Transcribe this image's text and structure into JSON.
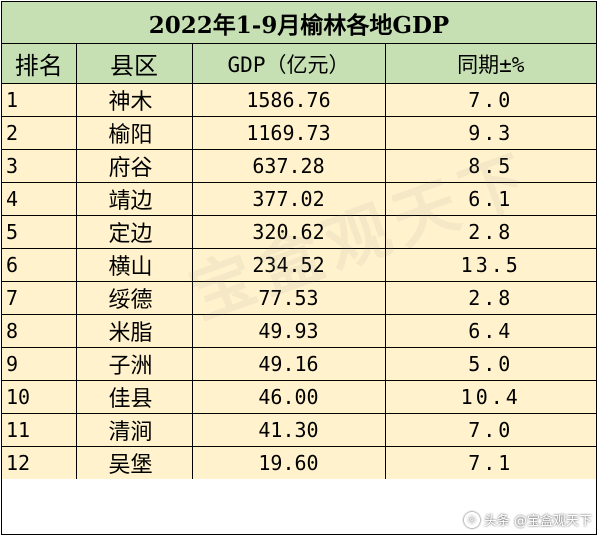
{
  "title": "2022年1-9月榆林各地GDP",
  "headers": {
    "rank": "排名",
    "county": "县区",
    "gdp": "GDP（亿元）",
    "yoy": "同期±%"
  },
  "rows": [
    {
      "rank": "1",
      "county": "神木",
      "gdp": "1586.76",
      "yoy": "7.0"
    },
    {
      "rank": "2",
      "county": "榆阳",
      "gdp": "1169.73",
      "yoy": "9.3"
    },
    {
      "rank": "3",
      "county": "府谷",
      "gdp": "637.28",
      "yoy": "8.5"
    },
    {
      "rank": "4",
      "county": "靖边",
      "gdp": "377.02",
      "yoy": "6.1"
    },
    {
      "rank": "5",
      "county": "定边",
      "gdp": "320.62",
      "yoy": "2.8"
    },
    {
      "rank": "6",
      "county": "横山",
      "gdp": "234.52",
      "yoy": "13.5"
    },
    {
      "rank": "7",
      "county": "绥德",
      "gdp": "77.53",
      "yoy": "2.8"
    },
    {
      "rank": "8",
      "county": "米脂",
      "gdp": "49.93",
      "yoy": "6.4"
    },
    {
      "rank": "9",
      "county": "子洲",
      "gdp": "49.16",
      "yoy": "5.0"
    },
    {
      "rank": "10",
      "county": "佳县",
      "gdp": "46.00",
      "yoy": "10.4"
    },
    {
      "rank": "11",
      "county": "清涧",
      "gdp": "41.30",
      "yoy": "7.0"
    },
    {
      "rank": "12",
      "county": "吴堡",
      "gdp": "19.60",
      "yoy": "7.1"
    }
  ],
  "watermark": "宝盒观天下",
  "footer": {
    "logo_icon": "toutiao-logo-icon",
    "text": "头条 @宝盒观天下"
  },
  "colors": {
    "header_bg": "#c6e0b4",
    "row_bg": "#fff2cc",
    "grid": "#000000"
  }
}
